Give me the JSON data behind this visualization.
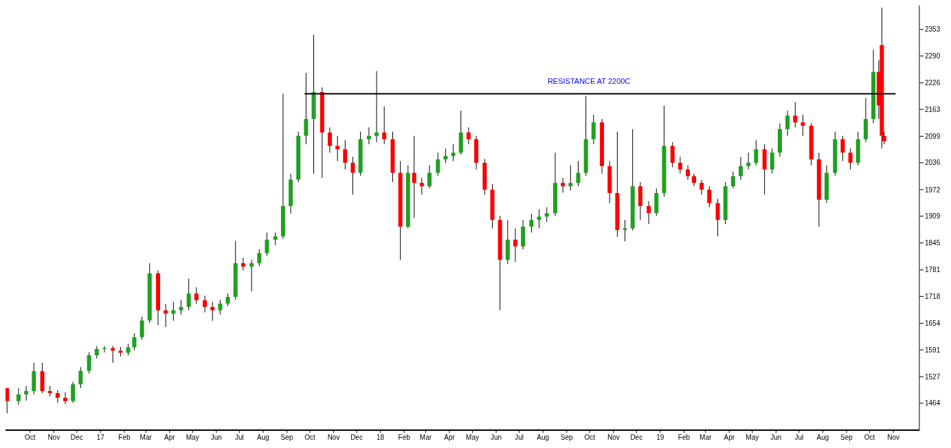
{
  "chart_data": {
    "type": "candlestick",
    "x": [
      "2016-09-16",
      "2016-10-01",
      "2016-10-11",
      "2016-10-21",
      "2016-11-01",
      "2016-11-11",
      "2016-11-21",
      "2016-12-01",
      "2016-12-11",
      "2016-12-21",
      "2017-01-01",
      "2017-01-11",
      "2017-01-21",
      "2017-02-01",
      "2017-02-11",
      "2017-02-21",
      "2017-03-01",
      "2017-03-11",
      "2017-03-21",
      "2017-04-01",
      "2017-04-11",
      "2017-04-21",
      "2017-05-01",
      "2017-05-11",
      "2017-05-21",
      "2017-06-01",
      "2017-06-11",
      "2017-06-21",
      "2017-07-01",
      "2017-07-11",
      "2017-07-21",
      "2017-08-01",
      "2017-08-11",
      "2017-08-21",
      "2017-09-01",
      "2017-09-11",
      "2017-09-21",
      "2017-10-01",
      "2017-10-11",
      "2017-10-21",
      "2017-11-01",
      "2017-11-11",
      "2017-11-21",
      "2017-12-01",
      "2017-12-11",
      "2017-12-21",
      "2018-01-01",
      "2018-01-11",
      "2018-01-21",
      "2018-02-01",
      "2018-02-11",
      "2018-02-21",
      "2018-03-01",
      "2018-03-11",
      "2018-03-21",
      "2018-04-01",
      "2018-04-11",
      "2018-04-21",
      "2018-05-01",
      "2018-05-11",
      "2018-05-21",
      "2018-06-01",
      "2018-06-11",
      "2018-06-21",
      "2018-07-01",
      "2018-07-11",
      "2018-07-21",
      "2018-08-01",
      "2018-08-11",
      "2018-08-21",
      "2018-09-01",
      "2018-09-11",
      "2018-09-21",
      "2018-10-01",
      "2018-10-11",
      "2018-10-21",
      "2018-11-01",
      "2018-11-11",
      "2018-11-21",
      "2018-12-01",
      "2018-12-11",
      "2018-12-21",
      "2019-01-01",
      "2019-01-11",
      "2019-01-21",
      "2019-02-01",
      "2019-02-11",
      "2019-02-21",
      "2019-03-01",
      "2019-03-11",
      "2019-03-21",
      "2019-04-01",
      "2019-04-11",
      "2019-04-21",
      "2019-05-01",
      "2019-05-11",
      "2019-05-21",
      "2019-06-01",
      "2019-06-11",
      "2019-06-21",
      "2019-07-01",
      "2019-07-11",
      "2019-07-21",
      "2019-08-01",
      "2019-08-11",
      "2019-08-21",
      "2019-09-01",
      "2019-09-11",
      "2019-09-21",
      "2019-10-01",
      "2019-10-11",
      "2019-10-21",
      "2019-10-28",
      "2019-11-01",
      "2019-11-04"
    ],
    "ohlc": [
      [
        1500,
        1500,
        1440,
        1469
      ],
      [
        1469,
        1500,
        1460,
        1485
      ],
      [
        1485,
        1505,
        1470,
        1493
      ],
      [
        1493,
        1560,
        1485,
        1540
      ],
      [
        1540,
        1560,
        1488,
        1493
      ],
      [
        1493,
        1505,
        1480,
        1488
      ],
      [
        1488,
        1495,
        1465,
        1477
      ],
      [
        1477,
        1490,
        1462,
        1469
      ],
      [
        1469,
        1515,
        1465,
        1509
      ],
      [
        1509,
        1550,
        1500,
        1541
      ],
      [
        1541,
        1585,
        1535,
        1578
      ],
      [
        1578,
        1600,
        1570,
        1593
      ],
      [
        1593,
        1600,
        1585,
        1595
      ],
      [
        1595,
        1600,
        1560,
        1589
      ],
      [
        1589,
        1598,
        1575,
        1584
      ],
      [
        1584,
        1605,
        1578,
        1597
      ],
      [
        1597,
        1630,
        1590,
        1621
      ],
      [
        1621,
        1670,
        1615,
        1661
      ],
      [
        1661,
        1797,
        1655,
        1773
      ],
      [
        1773,
        1780,
        1650,
        1685
      ],
      [
        1685,
        1700,
        1645,
        1677
      ],
      [
        1677,
        1705,
        1660,
        1685
      ],
      [
        1685,
        1710,
        1675,
        1693
      ],
      [
        1693,
        1760,
        1685,
        1725
      ],
      [
        1725,
        1740,
        1700,
        1709
      ],
      [
        1709,
        1720,
        1680,
        1693
      ],
      [
        1693,
        1705,
        1660,
        1685
      ],
      [
        1685,
        1710,
        1675,
        1701
      ],
      [
        1701,
        1725,
        1695,
        1717
      ],
      [
        1717,
        1850,
        1710,
        1797
      ],
      [
        1797,
        1810,
        1780,
        1789
      ],
      [
        1789,
        1805,
        1730,
        1797
      ],
      [
        1797,
        1830,
        1790,
        1821
      ],
      [
        1821,
        1870,
        1815,
        1853
      ],
      [
        1853,
        1870,
        1840,
        1861
      ],
      [
        1861,
        2200,
        1855,
        1933
      ],
      [
        1933,
        2010,
        1915,
        1996
      ],
      [
        1996,
        2110,
        1990,
        2100
      ],
      [
        2100,
        2250,
        2080,
        2140
      ],
      [
        2140,
        2340,
        2010,
        2204
      ],
      [
        2204,
        2215,
        2000,
        2108
      ],
      [
        2108,
        2120,
        2060,
        2076
      ],
      [
        2076,
        2100,
        2040,
        2068
      ],
      [
        2068,
        2090,
        2020,
        2036
      ],
      [
        2036,
        2050,
        1960,
        2012
      ],
      [
        2012,
        2110,
        2005,
        2092
      ],
      [
        2092,
        2120,
        2080,
        2100
      ],
      [
        2100,
        2254,
        2085,
        2108
      ],
      [
        2108,
        2170,
        2080,
        2092
      ],
      [
        2092,
        2110,
        1990,
        2012
      ],
      [
        2012,
        2040,
        1805,
        1884
      ],
      [
        1884,
        2030,
        1880,
        2012
      ],
      [
        2012,
        2100,
        1905,
        1988
      ],
      [
        1988,
        2000,
        1960,
        1980
      ],
      [
        1980,
        2030,
        1975,
        2012
      ],
      [
        2012,
        2060,
        2005,
        2044
      ],
      [
        2044,
        2070,
        2035,
        2052
      ],
      [
        2052,
        2080,
        2040,
        2060
      ],
      [
        2060,
        2160,
        2055,
        2108
      ],
      [
        2108,
        2120,
        2080,
        2092
      ],
      [
        2092,
        2100,
        2020,
        2036
      ],
      [
        2036,
        2045,
        1960,
        1972
      ],
      [
        1972,
        1985,
        1880,
        1900
      ],
      [
        1900,
        1910,
        1685,
        1805
      ],
      [
        1805,
        1900,
        1795,
        1853
      ],
      [
        1853,
        1880,
        1800,
        1837
      ],
      [
        1837,
        1900,
        1830,
        1884
      ],
      [
        1884,
        1915,
        1870,
        1900
      ],
      [
        1900,
        1925,
        1880,
        1908
      ],
      [
        1908,
        1930,
        1895,
        1916
      ],
      [
        1916,
        2060,
        1910,
        1988
      ],
      [
        1988,
        2000,
        1965,
        1980
      ],
      [
        1980,
        2030,
        1970,
        1988
      ],
      [
        1988,
        2040,
        1980,
        2012
      ],
      [
        2012,
        2195,
        2005,
        2092
      ],
      [
        2092,
        2150,
        2080,
        2132
      ],
      [
        2132,
        2140,
        2010,
        2028
      ],
      [
        2028,
        2040,
        1940,
        1964
      ],
      [
        1964,
        2110,
        1860,
        1876
      ],
      [
        1876,
        1900,
        1849,
        1880
      ],
      [
        1880,
        2116,
        1875,
        1980
      ],
      [
        1980,
        1990,
        1900,
        1933
      ],
      [
        1933,
        1945,
        1890,
        1916
      ],
      [
        1916,
        1975,
        1910,
        1964
      ],
      [
        1964,
        2172,
        1955,
        2076
      ],
      [
        2076,
        2085,
        2025,
        2036
      ],
      [
        2036,
        2050,
        2010,
        2020
      ],
      [
        2020,
        2030,
        1995,
        2004
      ],
      [
        2004,
        2010,
        1980,
        1988
      ],
      [
        1988,
        1995,
        1960,
        1972
      ],
      [
        1972,
        1980,
        1930,
        1940
      ],
      [
        1940,
        1950,
        1861,
        1900
      ],
      [
        1900,
        1990,
        1890,
        1980
      ],
      [
        1980,
        2015,
        1975,
        2004
      ],
      [
        2004,
        2050,
        1995,
        2028
      ],
      [
        2028,
        2060,
        2020,
        2036
      ],
      [
        2036,
        2090,
        2030,
        2068
      ],
      [
        2068,
        2080,
        1960,
        2020
      ],
      [
        2020,
        2070,
        2010,
        2060
      ],
      [
        2060,
        2130,
        2050,
        2116
      ],
      [
        2116,
        2160,
        2100,
        2148
      ],
      [
        2148,
        2180,
        2120,
        2132
      ],
      [
        2132,
        2150,
        2100,
        2124
      ],
      [
        2124,
        2130,
        2030,
        2044
      ],
      [
        2044,
        2060,
        1884,
        1948
      ],
      [
        1948,
        2030,
        1940,
        2012
      ],
      [
        2012,
        2110,
        2005,
        2092
      ],
      [
        2092,
        2100,
        2040,
        2060
      ],
      [
        2060,
        2070,
        2020,
        2036
      ],
      [
        2036,
        2110,
        2030,
        2092
      ],
      [
        2092,
        2190,
        2085,
        2140
      ],
      [
        2140,
        2305,
        2130,
        2252
      ],
      [
        2252,
        2280,
        2140,
        2172
      ],
      [
        2316,
        2405,
        2070,
        2100
      ],
      [
        2100,
        2110,
        2080,
        2087
      ]
    ],
    "colors": [
      "#ff0000",
      "#20a020",
      "#20a020",
      "#20a020",
      "#ff0000",
      "#ff0000",
      "#ff0000",
      "#ff0000",
      "#20a020",
      "#20a020",
      "#20a020",
      "#20a020",
      "#20a020",
      "#ff0000",
      "#ff0000",
      "#20a020",
      "#20a020",
      "#20a020",
      "#20a020",
      "#ff0000",
      "#ff0000",
      "#20a020",
      "#20a020",
      "#20a020",
      "#ff0000",
      "#ff0000",
      "#ff0000",
      "#20a020",
      "#20a020",
      "#20a020",
      "#ff0000",
      "#20a020",
      "#20a020",
      "#20a020",
      "#20a020",
      "#20a020",
      "#20a020",
      "#20a020",
      "#20a020",
      "#20a020",
      "#ff0000",
      "#ff0000",
      "#ff0000",
      "#ff0000",
      "#ff0000",
      "#20a020",
      "#20a020",
      "#20a020",
      "#ff0000",
      "#ff0000",
      "#ff0000",
      "#20a020",
      "#ff0000",
      "#ff0000",
      "#20a020",
      "#20a020",
      "#20a020",
      "#20a020",
      "#20a020",
      "#ff0000",
      "#ff0000",
      "#ff0000",
      "#ff0000",
      "#ff0000",
      "#20a020",
      "#ff0000",
      "#20a020",
      "#20a020",
      "#20a020",
      "#20a020",
      "#20a020",
      "#ff0000",
      "#20a020",
      "#20a020",
      "#20a020",
      "#20a020",
      "#ff0000",
      "#ff0000",
      "#ff0000",
      "#20a020",
      "#20a020",
      "#ff0000",
      "#ff0000",
      "#20a020",
      "#20a020",
      "#ff0000",
      "#ff0000",
      "#ff0000",
      "#ff0000",
      "#ff0000",
      "#ff0000",
      "#ff0000",
      "#20a020",
      "#20a020",
      "#20a020",
      "#20a020",
      "#20a020",
      "#ff0000",
      "#20a020",
      "#20a020",
      "#20a020",
      "#ff0000",
      "#ff0000",
      "#ff0000",
      "#ff0000",
      "#20a020",
      "#20a020",
      "#ff0000",
      "#ff0000",
      "#20a020",
      "#20a020",
      "#20a020",
      "#ff0000",
      "#ff0000",
      "#ff0000"
    ],
    "series": [
      {
        "type": "line",
        "x": [
          "2017-10-09",
          "2019-11-19"
        ],
        "values": [
          2200,
          2200
        ],
        "color": "#000000"
      }
    ],
    "annotations": [
      {
        "text": "RESISTANCE AT 2200C",
        "x": "2018-10-15",
        "y": 2200
      }
    ],
    "xlim": [
      "2016-09-14",
      "2019-12-20"
    ],
    "xticks": [
      {
        "value": "2016-10-16",
        "label": "Oct"
      },
      {
        "value": "2016-11-16",
        "label": "Nov"
      },
      {
        "value": "2016-12-16",
        "label": "Dec"
      },
      {
        "value": "2017-01-16",
        "label": "17"
      },
      {
        "value": "2017-02-16",
        "label": "Feb"
      },
      {
        "value": "2017-03-16",
        "label": "Mar"
      },
      {
        "value": "2017-04-16",
        "label": "Apr"
      },
      {
        "value": "2017-05-16",
        "label": "May"
      },
      {
        "value": "2017-06-16",
        "label": "Jun"
      },
      {
        "value": "2017-07-16",
        "label": "Jul"
      },
      {
        "value": "2017-08-16",
        "label": "Aug"
      },
      {
        "value": "2017-09-16",
        "label": "Sep"
      },
      {
        "value": "2017-10-16",
        "label": "Oct"
      },
      {
        "value": "2017-11-16",
        "label": "Nov"
      },
      {
        "value": "2017-12-16",
        "label": "Dec"
      },
      {
        "value": "2018-01-16",
        "label": "18"
      },
      {
        "value": "2018-02-16",
        "label": "Feb"
      },
      {
        "value": "2018-03-16",
        "label": "Mar"
      },
      {
        "value": "2018-04-16",
        "label": "Apr"
      },
      {
        "value": "2018-05-16",
        "label": "May"
      },
      {
        "value": "2018-06-16",
        "label": "Jun"
      },
      {
        "value": "2018-07-16",
        "label": "Jul"
      },
      {
        "value": "2018-08-16",
        "label": "Aug"
      },
      {
        "value": "2018-09-16",
        "label": "Sep"
      },
      {
        "value": "2018-10-16",
        "label": "Oct"
      },
      {
        "value": "2018-11-16",
        "label": "Nov"
      },
      {
        "value": "2018-12-16",
        "label": "Dec"
      },
      {
        "value": "2019-01-16",
        "label": "19"
      },
      {
        "value": "2019-02-16",
        "label": "Feb"
      },
      {
        "value": "2019-03-16",
        "label": "Mar"
      },
      {
        "value": "2019-04-16",
        "label": "Apr"
      },
      {
        "value": "2019-05-16",
        "label": "May"
      },
      {
        "value": "2019-06-16",
        "label": "Jun"
      },
      {
        "value": "2019-07-16",
        "label": "Jul"
      },
      {
        "value": "2019-08-16",
        "label": "Aug"
      },
      {
        "value": "2019-09-16",
        "label": "Sep"
      },
      {
        "value": "2019-10-16",
        "label": "Oct"
      },
      {
        "value": "2019-11-16",
        "label": "Nov"
      }
    ],
    "ylim": [
      1400,
      2410
    ],
    "yticks": [
      1464,
      1527,
      1591,
      1654,
      1718,
      1781,
      1845,
      1909,
      1972,
      2036,
      2099,
      2163,
      2226,
      2290,
      2353
    ],
    "grid": false
  }
}
